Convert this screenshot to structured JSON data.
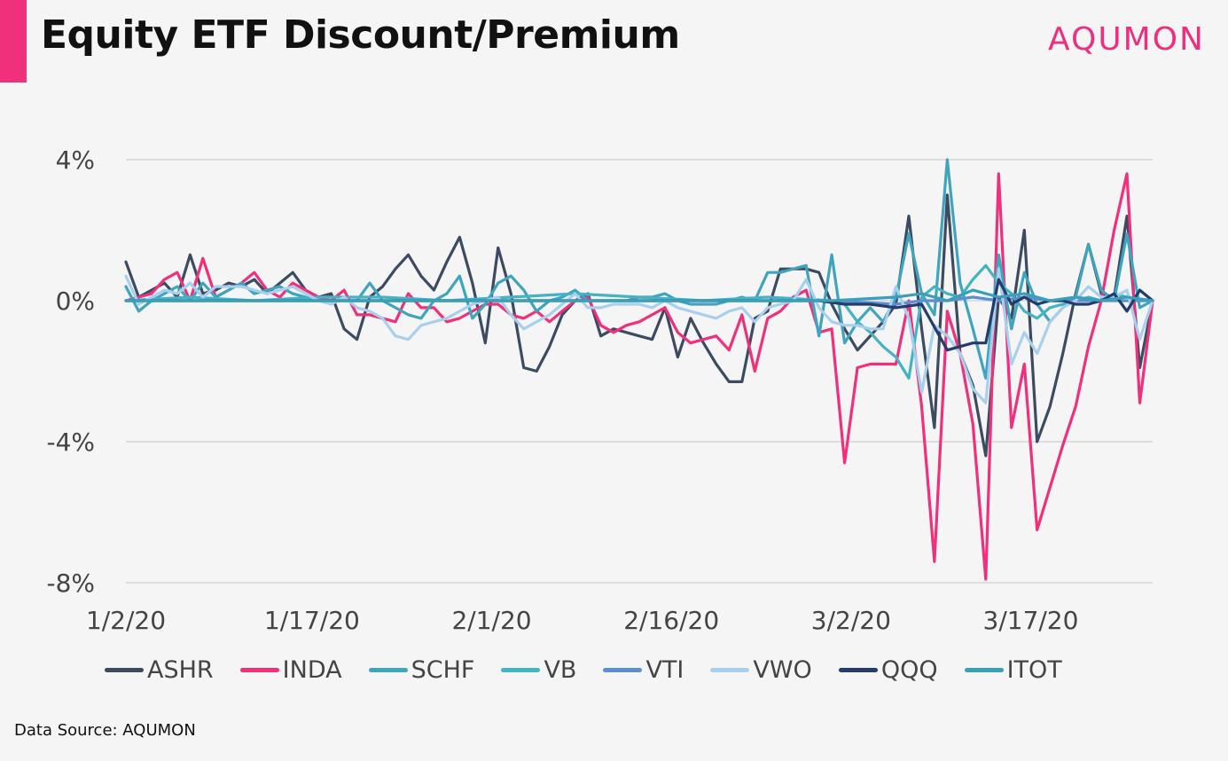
{
  "header": {
    "title": "Equity ETF Discount/Premium",
    "brand": "AQUMON"
  },
  "footer": {
    "source": "Data Source: AQUMON"
  },
  "colors": {
    "accent": "#f0307a",
    "brand": "#ee2f7e"
  },
  "chart_data": {
    "type": "line",
    "title": "Equity ETF Discount/Premium",
    "xlabel": "",
    "ylabel": "",
    "ylim": [
      -8,
      4
    ],
    "xlim": [
      0,
      80
    ],
    "y_ticks": [
      {
        "value": 4,
        "label": "4%"
      },
      {
        "value": 0,
        "label": "0%"
      },
      {
        "value": -4,
        "label": "-4%"
      },
      {
        "value": -8,
        "label": "-8%"
      }
    ],
    "x_ticks": [
      {
        "value": 0,
        "label": "1/2/20"
      },
      {
        "value": 14.5,
        "label": "1/17/20"
      },
      {
        "value": 28.5,
        "label": "2/1/20"
      },
      {
        "value": 42.5,
        "label": "2/16/20"
      },
      {
        "value": 56.5,
        "label": "3/2/20"
      },
      {
        "value": 70.5,
        "label": "3/17/20"
      }
    ],
    "grid": "horizontal",
    "legend_position": "bottom",
    "series": [
      {
        "name": "ASHR",
        "color": "#3c4b62",
        "x": [
          0,
          1,
          2,
          3,
          4,
          5,
          6,
          7,
          8,
          9,
          10,
          11,
          12,
          13,
          14,
          15,
          16,
          17,
          18,
          19,
          20,
          21,
          22,
          23,
          24,
          25,
          26,
          27,
          28,
          29,
          30,
          31,
          32,
          33,
          34,
          35,
          36,
          37,
          38,
          39,
          40,
          41,
          42,
          43,
          44,
          45,
          46,
          47,
          48,
          49,
          50,
          51,
          52,
          53,
          54,
          55,
          56,
          57,
          58,
          59,
          60,
          61,
          62,
          63,
          64,
          65,
          66,
          67,
          68,
          69,
          70,
          71,
          72,
          73,
          74,
          75,
          76,
          77,
          78,
          79,
          80
        ],
        "values": [
          1.1,
          0.1,
          0.3,
          0.5,
          0.1,
          1.3,
          0.2,
          0.3,
          0.5,
          0.4,
          0.6,
          0.2,
          0.5,
          0.8,
          0.3,
          0.1,
          0.2,
          -0.8,
          -1.1,
          0.1,
          0.4,
          0.9,
          1.3,
          0.7,
          0.3,
          1.1,
          1.8,
          0.5,
          -1.2,
          1.5,
          0.2,
          -1.9,
          -2.0,
          -1.3,
          -0.4,
          0.0,
          0.2,
          -1.0,
          -0.8,
          -0.9,
          -1.0,
          -1.1,
          -0.2,
          -1.6,
          -0.5,
          -1.2,
          -1.8,
          -2.3,
          -2.3,
          -0.5,
          -0.3,
          0.9,
          0.9,
          0.9,
          0.8,
          -0.1,
          -0.8,
          -1.4,
          -1.0,
          -0.6,
          -0.1,
          2.4,
          -0.8,
          -3.6,
          3.0,
          -1.5,
          -2.4,
          -4.4,
          0.1,
          -0.5,
          2.0,
          -4.0,
          -3.0,
          -1.5,
          0.2,
          1.6,
          0.2,
          0.1,
          2.4,
          -1.9,
          0.0
        ]
      },
      {
        "name": "INDA",
        "color": "#f0307a",
        "x": [
          0,
          1,
          2,
          3,
          4,
          5,
          6,
          7,
          8,
          9,
          10,
          11,
          12,
          13,
          14,
          15,
          16,
          17,
          18,
          19,
          20,
          21,
          22,
          23,
          24,
          25,
          26,
          27,
          28,
          29,
          30,
          31,
          32,
          33,
          34,
          35,
          36,
          37,
          38,
          39,
          40,
          41,
          42,
          43,
          44,
          45,
          46,
          47,
          48,
          49,
          50,
          51,
          52,
          53,
          54,
          55,
          56,
          57,
          58,
          59,
          60,
          61,
          62,
          63,
          64,
          65,
          66,
          67,
          68,
          69,
          70,
          71,
          72,
          73,
          74,
          75,
          76,
          77,
          78,
          79,
          80
        ],
        "values": [
          0.0,
          0.1,
          0.2,
          0.6,
          0.8,
          0.0,
          1.2,
          0.1,
          0.3,
          0.5,
          0.8,
          0.3,
          0.1,
          0.5,
          0.3,
          0.1,
          0.0,
          0.3,
          -0.4,
          -0.4,
          -0.5,
          -0.6,
          0.2,
          -0.2,
          -0.2,
          -0.6,
          -0.5,
          -0.3,
          -0.1,
          -0.1,
          -0.4,
          -0.5,
          -0.3,
          -0.6,
          -0.3,
          0.0,
          0.1,
          -0.7,
          -0.9,
          -0.7,
          -0.6,
          -0.4,
          -0.2,
          -0.9,
          -1.2,
          -1.1,
          -1.0,
          -1.4,
          -0.4,
          -2.0,
          -0.5,
          -0.3,
          0.1,
          0.3,
          -0.9,
          -0.8,
          -4.6,
          -1.9,
          -1.8,
          -1.8,
          -1.8,
          0.0,
          -3.0,
          -7.4,
          -0.3,
          -1.5,
          -3.5,
          -7.9,
          3.6,
          -3.6,
          -1.8,
          -6.5,
          -5.3,
          -4.1,
          -3.0,
          -1.3,
          0.0,
          2.0,
          3.6,
          -2.9,
          0.0
        ]
      },
      {
        "name": "SCHF",
        "color": "#3fa5be",
        "x": [
          0,
          1,
          2,
          3,
          4,
          5,
          6,
          7,
          8,
          9,
          10,
          11,
          12,
          13,
          14,
          15,
          16,
          17,
          18,
          19,
          20,
          21,
          22,
          23,
          24,
          25,
          26,
          27,
          28,
          29,
          30,
          31,
          32,
          33,
          34,
          35,
          36,
          37,
          38,
          39,
          40,
          41,
          42,
          43,
          44,
          45,
          46,
          47,
          48,
          49,
          50,
          51,
          52,
          53,
          54,
          55,
          56,
          57,
          58,
          59,
          60,
          61,
          62,
          63,
          64,
          65,
          66,
          67,
          68,
          69,
          70,
          71,
          72,
          73,
          74,
          75,
          76,
          77,
          78,
          79,
          80
        ],
        "values": [
          0.4,
          -0.3,
          0.0,
          0.2,
          0.4,
          0.0,
          0.5,
          0.1,
          0.3,
          0.5,
          0.2,
          0.3,
          0.4,
          0.2,
          0.1,
          0.0,
          0.0,
          0.0,
          0.0,
          0.5,
          0.0,
          -0.2,
          -0.4,
          -0.5,
          0.0,
          0.2,
          0.7,
          -0.5,
          -0.1,
          0.5,
          0.7,
          0.3,
          -0.3,
          0.0,
          0.1,
          0.3,
          0.0,
          0.0,
          0.0,
          0.0,
          0.1,
          0.1,
          0.2,
          0.0,
          -0.1,
          -0.1,
          -0.1,
          0.0,
          0.1,
          0.0,
          0.8,
          0.8,
          0.9,
          1.0,
          -1.0,
          1.3,
          -1.2,
          -0.6,
          -0.2,
          -0.6,
          0.1,
          1.9,
          0.2,
          -0.4,
          4.0,
          0.5,
          -0.8,
          -2.2,
          1.3,
          -0.8,
          0.8,
          -0.1,
          -0.6,
          -0.2,
          0.1,
          1.6,
          0.3,
          0.0,
          1.9,
          -0.2,
          0.0
        ]
      },
      {
        "name": "VB",
        "color": "#44b3c2",
        "x": [
          0,
          5,
          10,
          15,
          20,
          25,
          30,
          35,
          40,
          45,
          50,
          55,
          56,
          57,
          58,
          59,
          60,
          61,
          62,
          63,
          64,
          65,
          66,
          67,
          68,
          69,
          70,
          71,
          72,
          73,
          74,
          75,
          76,
          77,
          78,
          79,
          80
        ],
        "values": [
          0.0,
          0.1,
          0.0,
          0.1,
          0.1,
          0.0,
          0.1,
          0.2,
          0.1,
          0.0,
          0.1,
          0.0,
          -0.1,
          -0.6,
          -0.9,
          -1.3,
          -1.6,
          -2.2,
          0.1,
          0.4,
          0.2,
          0.1,
          0.6,
          1.0,
          0.5,
          0.2,
          -0.3,
          -0.5,
          -0.2,
          -0.1,
          0.0,
          0.1,
          0.0,
          0.2,
          0.1,
          0.0,
          0.0
        ]
      },
      {
        "name": "VTI",
        "color": "#5b8fd2",
        "x": [
          0,
          10,
          20,
          30,
          40,
          50,
          55,
          60,
          62,
          64,
          66,
          68,
          70,
          72,
          74,
          76,
          78,
          80
        ],
        "values": [
          0.0,
          0.0,
          0.0,
          0.0,
          0.0,
          0.0,
          0.0,
          -0.1,
          0.0,
          0.0,
          0.1,
          0.0,
          0.1,
          0.0,
          0.0,
          0.0,
          0.0,
          0.0
        ]
      },
      {
        "name": "VWO",
        "color": "#a8d0ee",
        "x": [
          0,
          1,
          2,
          3,
          4,
          5,
          6,
          7,
          8,
          9,
          10,
          11,
          12,
          13,
          14,
          15,
          16,
          17,
          18,
          19,
          20,
          21,
          22,
          23,
          24,
          25,
          26,
          27,
          28,
          29,
          30,
          31,
          32,
          33,
          34,
          35,
          36,
          37,
          38,
          39,
          40,
          41,
          42,
          43,
          44,
          45,
          46,
          47,
          48,
          49,
          50,
          51,
          52,
          53,
          54,
          55,
          56,
          57,
          58,
          59,
          60,
          61,
          62,
          63,
          64,
          65,
          66,
          67,
          68,
          69,
          70,
          71,
          72,
          73,
          74,
          75,
          76,
          77,
          78,
          79,
          80
        ],
        "values": [
          0.7,
          -0.1,
          0.1,
          0.3,
          0.2,
          0.5,
          0.1,
          0.4,
          0.4,
          0.4,
          0.3,
          0.2,
          0.3,
          0.4,
          0.2,
          0.0,
          -0.1,
          0.1,
          -0.2,
          -0.3,
          -0.5,
          -1.0,
          -1.1,
          -0.7,
          -0.6,
          -0.5,
          -0.3,
          -0.1,
          0.0,
          0.1,
          -0.4,
          -0.8,
          -0.6,
          -0.4,
          -0.1,
          0.2,
          -0.2,
          -0.2,
          -0.1,
          -0.1,
          -0.1,
          -0.2,
          0.0,
          -0.2,
          -0.3,
          -0.4,
          -0.5,
          -0.3,
          -0.2,
          -0.6,
          -0.2,
          -0.1,
          0.0,
          0.6,
          -0.2,
          -0.6,
          -0.7,
          -0.7,
          -0.8,
          -0.8,
          0.4,
          -0.5,
          -2.6,
          -0.7,
          -1.0,
          -1.5,
          -2.5,
          -2.9,
          0.9,
          -1.8,
          -0.9,
          -1.5,
          -0.6,
          -0.2,
          0.0,
          0.4,
          0.1,
          0.1,
          0.3,
          -1.1,
          0.0
        ]
      },
      {
        "name": "QQQ",
        "color": "#243b6b",
        "x": [
          0,
          5,
          10,
          15,
          20,
          25,
          30,
          35,
          40,
          45,
          50,
          52,
          54,
          56,
          58,
          60,
          62,
          64,
          65,
          66,
          67,
          68,
          69,
          70,
          71,
          72,
          73,
          74,
          75,
          76,
          77,
          78,
          79,
          80
        ],
        "values": [
          0.0,
          0.0,
          0.0,
          0.0,
          0.0,
          0.0,
          0.0,
          0.0,
          0.0,
          0.0,
          0.0,
          0.0,
          0.0,
          -0.1,
          -0.1,
          -0.2,
          -0.1,
          -1.4,
          -1.3,
          -1.2,
          -1.2,
          0.6,
          -0.1,
          0.1,
          -0.1,
          0.0,
          0.0,
          -0.1,
          -0.1,
          0.0,
          0.2,
          -0.3,
          0.3,
          0.0
        ]
      },
      {
        "name": "ITOT",
        "color": "#3aa0b8",
        "x": [
          0,
          10,
          20,
          30,
          40,
          50,
          55,
          60,
          62,
          64,
          66,
          68,
          70,
          72,
          74,
          76,
          78,
          80
        ],
        "values": [
          0.0,
          0.0,
          0.0,
          0.0,
          0.0,
          0.0,
          0.0,
          0.1,
          0.2,
          0.0,
          0.3,
          0.1,
          0.2,
          0.0,
          0.1,
          0.0,
          0.1,
          0.0
        ]
      }
    ]
  }
}
